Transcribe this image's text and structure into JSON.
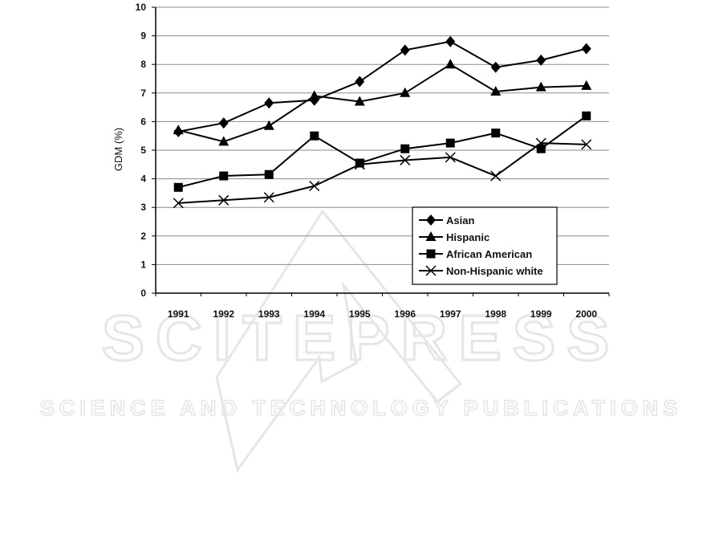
{
  "watermark": {
    "title": "SCITEPRESS",
    "subtitle": "SCIENCE AND TECHNOLOGY PUBLICATIONS",
    "color": "#e6e6e6"
  },
  "chart_data": {
    "type": "line",
    "title": "",
    "xlabel": "",
    "ylabel": "GDM (%)",
    "ylim": [
      0,
      10
    ],
    "yticks": [
      0,
      1,
      2,
      3,
      4,
      5,
      6,
      7,
      8,
      9,
      10
    ],
    "grid": true,
    "legend_position": "bottom-right",
    "categories": [
      "1991",
      "1992",
      "1993",
      "1994",
      "1995",
      "1996",
      "1997",
      "1998",
      "1999",
      "2000"
    ],
    "series": [
      {
        "name": "Asian",
        "marker": "diamond",
        "values": [
          5.65,
          5.95,
          6.65,
          6.75,
          7.4,
          8.5,
          8.8,
          7.9,
          8.15,
          8.55
        ]
      },
      {
        "name": "Hispanic",
        "marker": "triangle",
        "values": [
          5.7,
          5.3,
          5.85,
          6.9,
          6.7,
          7.0,
          8.0,
          7.05,
          7.2,
          7.25
        ]
      },
      {
        "name": "African American",
        "marker": "square",
        "values": [
          3.7,
          4.1,
          4.15,
          5.5,
          4.55,
          5.05,
          5.25,
          5.6,
          5.05,
          6.2
        ]
      },
      {
        "name": "Non-Hispanic white",
        "marker": "x",
        "values": [
          3.15,
          3.25,
          3.35,
          3.75,
          4.5,
          4.65,
          4.75,
          4.1,
          5.25,
          5.2
        ]
      }
    ]
  }
}
